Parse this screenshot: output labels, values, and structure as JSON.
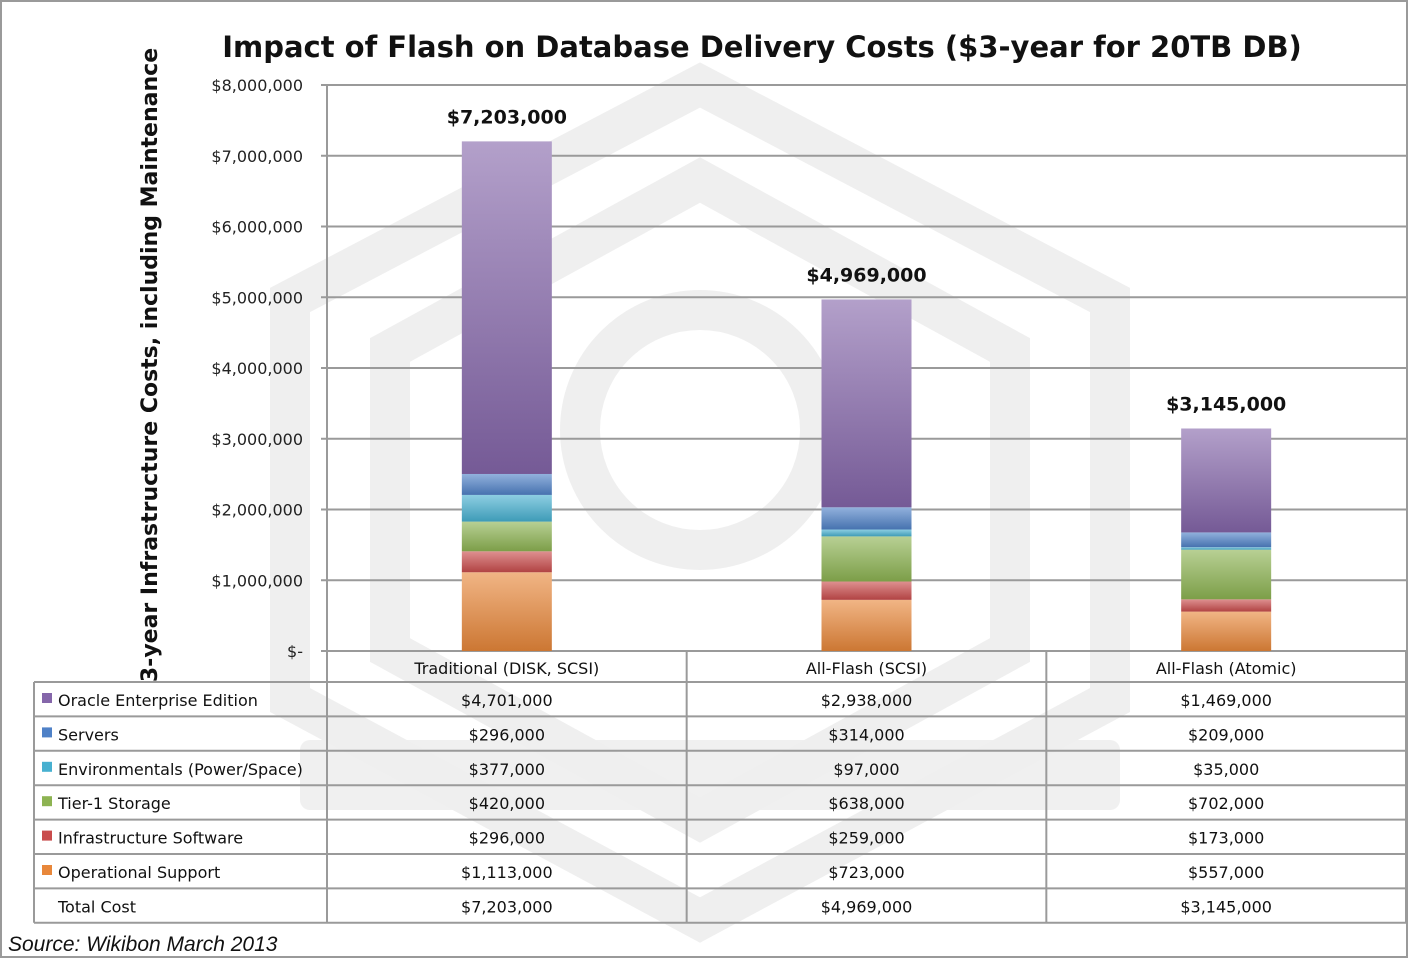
{
  "chart_data": {
    "type": "bar",
    "stacked": true,
    "title": "Impact of Flash on Database Delivery Costs ($3-year for 20TB DB)",
    "xlabel": "",
    "ylabel": "3-year Infrastructure Costs, including Maintenance",
    "ylim": [
      0,
      8000000
    ],
    "yticks": [
      0,
      1000000,
      2000000,
      3000000,
      4000000,
      5000000,
      6000000,
      7000000,
      8000000
    ],
    "ytick_labels": [
      "$-",
      "$1,000,000",
      "$2,000,000",
      "$3,000,000",
      "$4,000,000",
      "$5,000,000",
      "$6,000,000",
      "$7,000,000",
      "$8,000,000"
    ],
    "grid": true,
    "legend": "data-table-below",
    "categories": [
      "Traditional (DISK, SCSI)",
      "All-Flash (SCSI)",
      "All-Flash (Atomic)"
    ],
    "series": [
      {
        "name": "Operational Support",
        "color": "#e8873a",
        "values": [
          1113000,
          723000,
          557000
        ],
        "labels": [
          "$1,113,000",
          "$723,000",
          "$557,000"
        ]
      },
      {
        "name": "Infrastructure Software",
        "color": "#c94c4c",
        "values": [
          296000,
          259000,
          173000
        ],
        "labels": [
          "$296,000",
          "$259,000",
          "$173,000"
        ]
      },
      {
        "name": "Tier-1 Storage",
        "color": "#8db352",
        "values": [
          420000,
          638000,
          702000
        ],
        "labels": [
          "$420,000",
          "$638,000",
          "$702,000"
        ]
      },
      {
        "name": "Environmentals (Power/Space)",
        "color": "#47b0d0",
        "values": [
          377000,
          97000,
          35000
        ],
        "labels": [
          "$377,000",
          "$97,000",
          "$35,000"
        ]
      },
      {
        "name": "Servers",
        "color": "#4f81c7",
        "values": [
          296000,
          314000,
          209000
        ],
        "labels": [
          "$296,000",
          "$314,000",
          "$209,000"
        ]
      },
      {
        "name": "Oracle Enterprise Edition",
        "color": "#8566aa",
        "values": [
          4701000,
          2938000,
          1469000
        ],
        "labels": [
          "$4,701,000",
          "$2,938,000",
          "$1,469,000"
        ]
      }
    ],
    "totals": [
      7203000,
      4969000,
      3145000
    ],
    "total_labels": [
      "$7,203,000",
      "$4,969,000",
      "$3,145,000"
    ],
    "table_row_order": [
      "Oracle Enterprise Edition",
      "Servers",
      "Environmentals (Power/Space)",
      "Tier-1 Storage",
      "Infrastructure Software",
      "Operational Support"
    ],
    "total_row_label": "Total Cost",
    "source": "Source:  Wikibon March 2013"
  }
}
